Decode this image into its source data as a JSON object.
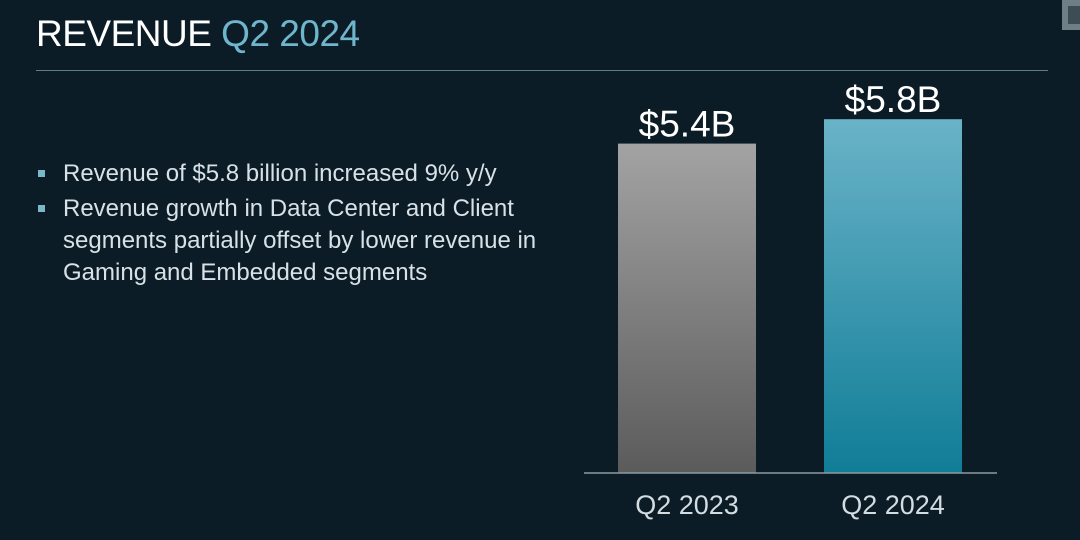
{
  "slide": {
    "title_main": "REVENUE",
    "title_accent": "Q2 2024"
  },
  "bullets": [
    "Revenue of $5.8 billion increased 9% y/y",
    "Revenue growth in Data Center and Client segments partially offset by lower revenue in Gaming and Embedded segments"
  ],
  "colors": {
    "background": "#0b1c26",
    "accent": "#6fb6cc",
    "bar_2023_top": "#a3a3a3",
    "bar_2023_bottom": "#5b5b5b",
    "bar_2024_top": "#6ab3c8",
    "bar_2024_bottom": "#107d97"
  },
  "chart_data": {
    "type": "bar",
    "categories": [
      "Q2 2023",
      "Q2 2024"
    ],
    "values": [
      5.4,
      5.8
    ],
    "data_labels": [
      "$5.4B",
      "$5.8B"
    ],
    "title": "",
    "xlabel": "",
    "ylabel": "",
    "unit": "B",
    "grid": false,
    "legend": "none"
  }
}
